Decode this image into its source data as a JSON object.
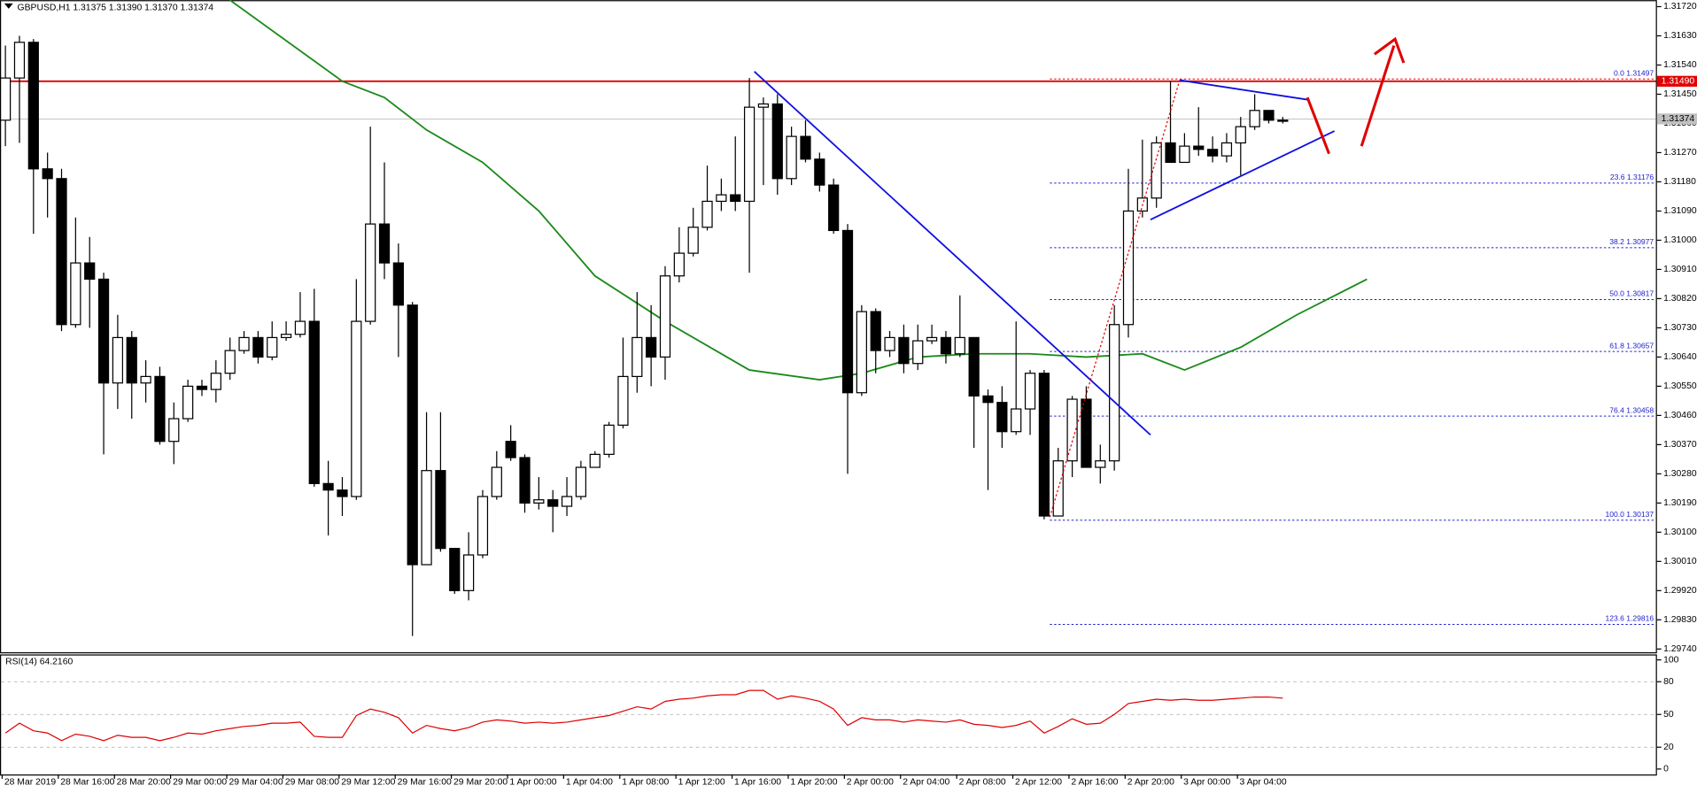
{
  "chart_data": [
    {
      "type": "candlestick",
      "title": "GBPUSD,H1  1.31375 1.31390 1.31370 1.31374",
      "categories": [
        "28 Mar 2019",
        null,
        null,
        null,
        "28 Mar 16:00",
        null,
        null,
        null,
        "28 Mar 20:00",
        null,
        null,
        null,
        "29 Mar 00:00",
        null,
        null,
        null,
        "29 Mar 04:00",
        null,
        null,
        null,
        "29 Mar 08:00",
        null,
        null,
        null,
        "29 Mar 12:00",
        null,
        null,
        null,
        "29 Mar 16:00",
        null,
        null,
        null,
        "29 Mar 20:00",
        null,
        null,
        null,
        "1 Apr 00:00",
        null,
        null,
        null,
        "1 Apr 04:00",
        null,
        null,
        null,
        "1 Apr 08:00",
        null,
        null,
        null,
        "1 Apr 12:00",
        null,
        null,
        null,
        "1 Apr 16:00",
        null,
        null,
        null,
        "1 Apr 20:00",
        null,
        null,
        null,
        "2 Apr 00:00",
        null,
        null,
        null,
        "2 Apr 04:00",
        null,
        null,
        null,
        "2 Apr 08:00",
        null,
        null,
        null,
        "2 Apr 12:00",
        null,
        null,
        null,
        "2 Apr 16:00",
        null,
        null,
        null,
        "2 Apr 20:00",
        null,
        null,
        null,
        "3 Apr 00:00",
        null,
        null,
        null,
        "3 Apr 04:00",
        null,
        null,
        null
      ],
      "open": [
        1.3137,
        1.315,
        1.3161,
        1.3122,
        1.3119,
        1.3074,
        1.3093,
        1.3088,
        1.3056,
        1.307,
        1.3056,
        1.3058,
        1.3038,
        1.3045,
        1.3055,
        1.3054,
        1.3059,
        1.3066,
        1.307,
        1.3064,
        1.307,
        1.3071,
        1.3075,
        1.3025,
        1.3023,
        1.3021,
        1.3075,
        1.3105,
        1.3093,
        1.308,
        1.3,
        1.3029,
        1.3005,
        1.2992,
        1.3003,
        1.3021,
        1.3038,
        1.3033,
        1.3019,
        1.302,
        1.3018,
        1.3021,
        1.303,
        1.3034,
        1.3043,
        1.3058,
        1.307,
        1.3064,
        1.3089,
        1.3096,
        1.3104,
        1.3112,
        1.3114,
        1.3112,
        1.3141,
        1.3142,
        1.3119,
        1.3132,
        1.3125,
        1.3117,
        1.3103,
        1.3053,
        1.3078,
        1.3066,
        1.307,
        1.3062,
        1.3069,
        1.307,
        1.3065,
        1.307,
        1.3052,
        1.305,
        1.3041,
        1.3048,
        1.3059,
        1.3015,
        1.3032,
        1.3051,
        1.303,
        1.3032,
        1.3074,
        1.3109,
        1.3113,
        1.313,
        1.3124,
        1.3129,
        1.3128,
        1.3126,
        1.313,
        1.3135,
        1.314,
        1.3137
      ],
      "high": [
        1.316,
        1.3163,
        1.3162,
        1.3127,
        1.3122,
        1.3107,
        1.3101,
        1.309,
        1.3077,
        1.3072,
        1.3063,
        1.3061,
        1.305,
        1.3057,
        1.3057,
        1.3063,
        1.307,
        1.3072,
        1.3072,
        1.3075,
        1.3075,
        1.3084,
        1.3085,
        1.3032,
        1.3027,
        1.3088,
        1.3135,
        1.3124,
        1.3099,
        1.3081,
        1.3047,
        1.3047,
        1.3005,
        1.301,
        1.3023,
        1.3035,
        1.3043,
        1.3034,
        1.3027,
        1.3023,
        1.3027,
        1.3032,
        1.3035,
        1.3044,
        1.307,
        1.3084,
        1.308,
        1.3092,
        1.3104,
        1.311,
        1.3123,
        1.3119,
        1.3132,
        1.315,
        1.3144,
        1.3145,
        1.3135,
        1.3137,
        1.3127,
        1.3119,
        1.3105,
        1.308,
        1.3079,
        1.3072,
        1.3074,
        1.3074,
        1.3074,
        1.3072,
        1.3083,
        1.307,
        1.3054,
        1.3055,
        1.3075,
        1.306,
        1.306,
        1.3036,
        1.3052,
        1.3055,
        1.3037,
        1.308,
        1.3122,
        1.3131,
        1.3132,
        1.3149,
        1.3133,
        1.3141,
        1.3132,
        1.3133,
        1.3138,
        1.3145,
        1.314,
        1.3138
      ],
      "low": [
        1.3129,
        1.313,
        1.3102,
        1.3107,
        1.3072,
        1.3073,
        1.3073,
        1.3034,
        1.3048,
        1.3045,
        1.305,
        1.3037,
        1.3031,
        1.3044,
        1.3052,
        1.305,
        1.3057,
        1.3065,
        1.3062,
        1.3063,
        1.3069,
        1.307,
        1.3024,
        1.3009,
        1.3015,
        1.302,
        1.3074,
        1.3088,
        1.3064,
        1.2978,
        1.3,
        1.3004,
        1.2991,
        1.2989,
        1.3002,
        1.302,
        1.3032,
        1.3016,
        1.3017,
        1.301,
        1.3015,
        1.302,
        1.303,
        1.3033,
        1.3042,
        1.3053,
        1.3055,
        1.3057,
        1.3087,
        1.3095,
        1.3103,
        1.3109,
        1.3109,
        1.309,
        1.3117,
        1.3114,
        1.3117,
        1.3124,
        1.3115,
        1.3102,
        1.3028,
        1.3052,
        1.3059,
        1.3064,
        1.3059,
        1.306,
        1.3068,
        1.3062,
        1.3064,
        1.3036,
        1.3023,
        1.3036,
        1.304,
        1.304,
        1.3014,
        1.3015,
        1.3027,
        1.303,
        1.3025,
        1.3029,
        1.307,
        1.3107,
        1.311,
        1.3124,
        1.3124,
        1.3126,
        1.3124,
        1.3124,
        1.312,
        1.3134,
        1.3136,
        1.3136
      ],
      "close": [
        1.315,
        1.3161,
        1.3122,
        1.3119,
        1.3074,
        1.3093,
        1.3088,
        1.3056,
        1.307,
        1.3056,
        1.3058,
        1.3038,
        1.3045,
        1.3055,
        1.3054,
        1.3059,
        1.3066,
        1.307,
        1.3064,
        1.307,
        1.3071,
        1.3075,
        1.3025,
        1.3023,
        1.3021,
        1.3075,
        1.3105,
        1.3093,
        1.308,
        1.3,
        1.3029,
        1.3005,
        1.2992,
        1.3003,
        1.3021,
        1.303,
        1.3033,
        1.3019,
        1.302,
        1.3018,
        1.3021,
        1.303,
        1.3034,
        1.3043,
        1.3058,
        1.307,
        1.3064,
        1.3089,
        1.3096,
        1.3104,
        1.3112,
        1.3114,
        1.3112,
        1.3141,
        1.3142,
        1.3119,
        1.3132,
        1.3125,
        1.3117,
        1.3103,
        1.3053,
        1.3078,
        1.3066,
        1.307,
        1.3062,
        1.3069,
        1.307,
        1.3065,
        1.307,
        1.3052,
        1.305,
        1.3041,
        1.3048,
        1.3059,
        1.3015,
        1.3032,
        1.3051,
        1.303,
        1.3032,
        1.3074,
        1.3109,
        1.3113,
        1.313,
        1.3124,
        1.3129,
        1.3128,
        1.3126,
        1.313,
        1.3135,
        1.314,
        1.3137,
        1.3137
      ],
      "up_color": "#ffffff",
      "down_color": "#000000",
      "moving_average": {
        "color": "#1a8a1a",
        "x": [
          16,
          24,
          27,
          30,
          34,
          38,
          42,
          47,
          53,
          58,
          61,
          65,
          69,
          73,
          77,
          81,
          84,
          88,
          92,
          97
        ],
        "values": [
          1.3174,
          1.3149,
          1.3144,
          1.3134,
          1.3124,
          1.3109,
          1.3089,
          1.3075,
          1.306,
          1.3057,
          1.3059,
          1.3064,
          1.3065,
          1.3065,
          1.3064,
          1.3065,
          1.306,
          1.3067,
          1.3077,
          1.3088
        ]
      },
      "level_line": {
        "value": 1.3149,
        "label": "1.31490",
        "color": "#e00000"
      },
      "last_price": {
        "value": 1.31374,
        "label": "1.31374"
      },
      "fib_levels": [
        {
          "label": "0.0 1.31497",
          "value": 1.31497
        },
        {
          "label": "23.6 1.31176",
          "value": 1.31176
        },
        {
          "label": "38.2 1.30977",
          "value": 1.30977
        },
        {
          "label": "50.0 1.30817",
          "value": 1.30817
        },
        {
          "label": "61.8 1.30657",
          "value": 1.30657
        },
        {
          "label": "76.4 1.30458",
          "value": 1.30458
        },
        {
          "label": "100.0 1.30137",
          "value": 1.30137
        },
        {
          "label": "123.6 1.29816",
          "value": 1.29816
        }
      ],
      "ylim": [
        1.2973,
        1.3174
      ],
      "yticks": [
        {
          "value": 1.3172,
          "label": "1.31720"
        },
        {
          "value": 1.3163,
          "label": "1.31630"
        },
        {
          "value": 1.3154,
          "label": "1.31540"
        },
        {
          "value": 1.3145,
          "label": "1.31450"
        },
        {
          "value": 1.3136,
          "label": "1.31360"
        },
        {
          "value": 1.3127,
          "label": "1.31270"
        },
        {
          "value": 1.3118,
          "label": "1.31180"
        },
        {
          "value": 1.3109,
          "label": "1.31090"
        },
        {
          "value": 1.31,
          "label": "1.31000"
        },
        {
          "value": 1.3091,
          "label": "1.30910"
        },
        {
          "value": 1.3082,
          "label": "1.30820"
        },
        {
          "value": 1.3073,
          "label": "1.30730"
        },
        {
          "value": 1.3064,
          "label": "1.30640"
        },
        {
          "value": 1.3055,
          "label": "1.30550"
        },
        {
          "value": 1.3046,
          "label": "1.30460"
        },
        {
          "value": 1.3037,
          "label": "1.30370"
        },
        {
          "value": 1.3028,
          "label": "1.30280"
        },
        {
          "value": 1.3019,
          "label": "1.30190"
        },
        {
          "value": 1.301,
          "label": "1.30100"
        },
        {
          "value": 1.3001,
          "label": "1.30010"
        },
        {
          "value": 1.2992,
          "label": "1.29920"
        },
        {
          "value": 1.2983,
          "label": "1.29830"
        },
        {
          "value": 1.2974,
          "label": "1.29740"
        }
      ]
    },
    {
      "type": "line",
      "title": "RSI(14) 64.2160",
      "color": "#e00000",
      "values": [
        33,
        42,
        35,
        33,
        26,
        32,
        30,
        26,
        31,
        29,
        29,
        26,
        29,
        33,
        32,
        35,
        37,
        39,
        40,
        42,
        42,
        43,
        30,
        29,
        29,
        49,
        55,
        52,
        47,
        33,
        40,
        37,
        35,
        38,
        43,
        45,
        44,
        42,
        43,
        42,
        43,
        45,
        47,
        49,
        53,
        57,
        55,
        62,
        64,
        65,
        67,
        68,
        68,
        72,
        72,
        64,
        67,
        65,
        62,
        55,
        40,
        47,
        45,
        45,
        43,
        45,
        44,
        43,
        45,
        41,
        40,
        38,
        40,
        44,
        33,
        39,
        46,
        41,
        42,
        50,
        60,
        62,
        64,
        63,
        64,
        63,
        63,
        64,
        65,
        66,
        66,
        65
      ],
      "ylim": [
        -5,
        105
      ],
      "yticks": [
        100,
        80,
        50,
        20,
        0
      ]
    }
  ]
}
